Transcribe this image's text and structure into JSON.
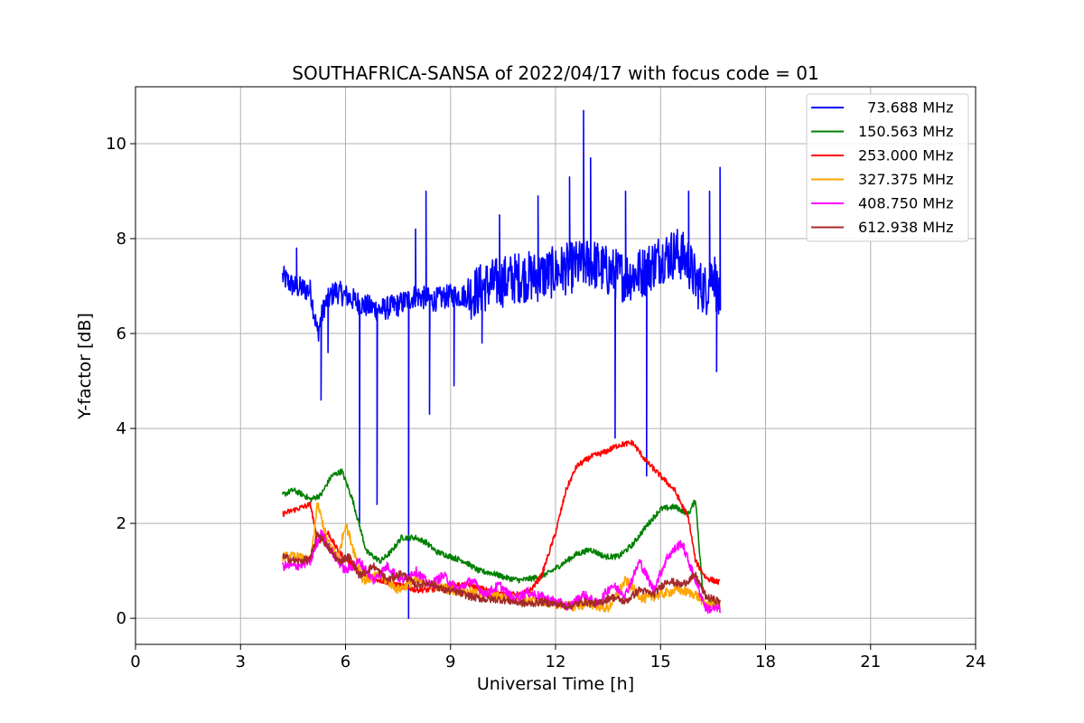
{
  "chart_data": {
    "type": "line",
    "title": "SOUTHAFRICA-SANSA of 2022/04/17 with focus code = 01",
    "xlabel": "Universal Time [h]",
    "ylabel": "Y-factor [dB]",
    "xlim": [
      0,
      24
    ],
    "ylim": [
      -0.55,
      11.2
    ],
    "xticks": [
      0,
      3,
      6,
      9,
      12,
      15,
      18,
      21,
      24
    ],
    "yticks": [
      0,
      2,
      4,
      6,
      8,
      10
    ],
    "grid": true,
    "legend_position": "top-right",
    "series": [
      {
        "name": "  73.688 MHz",
        "color": "#0000ff",
        "x": [
          4.2,
          4.5,
          5.0,
          5.2,
          5.4,
          5.7,
          6.0,
          6.5,
          7.0,
          7.5,
          8.0,
          8.5,
          9.0,
          9.5,
          10.0,
          10.5,
          11.0,
          11.5,
          12.0,
          12.5,
          13.0,
          13.5,
          14.0,
          14.5,
          15.0,
          15.5,
          15.8,
          16.0,
          16.3,
          16.5,
          16.7
        ],
        "y": [
          7.2,
          7.0,
          6.9,
          6.0,
          6.6,
          6.9,
          6.8,
          6.6,
          6.5,
          6.6,
          6.8,
          6.7,
          6.8,
          6.8,
          7.0,
          7.1,
          7.2,
          7.2,
          7.3,
          7.4,
          7.5,
          7.3,
          7.2,
          7.3,
          7.6,
          7.7,
          7.5,
          7.1,
          6.9,
          7.4,
          6.5
        ],
        "spikes": [
          [
            4.6,
            7.8
          ],
          [
            5.3,
            4.6
          ],
          [
            5.5,
            5.6
          ],
          [
            6.4,
            2.0
          ],
          [
            6.9,
            2.4
          ],
          [
            7.8,
            0.0
          ],
          [
            8.0,
            8.2
          ],
          [
            8.3,
            9.0
          ],
          [
            8.4,
            4.3
          ],
          [
            9.1,
            4.9
          ],
          [
            9.9,
            5.8
          ],
          [
            10.4,
            8.5
          ],
          [
            11.5,
            8.9
          ],
          [
            12.4,
            9.3
          ],
          [
            12.8,
            10.7
          ],
          [
            13.0,
            9.7
          ],
          [
            13.7,
            3.8
          ],
          [
            14.0,
            9.0
          ],
          [
            14.6,
            3.0
          ],
          [
            15.8,
            9.0
          ],
          [
            16.4,
            9.0
          ],
          [
            16.6,
            5.2
          ],
          [
            16.7,
            9.5
          ]
        ]
      },
      {
        "name": "150.563 MHz",
        "color": "#008000",
        "x": [
          4.2,
          4.5,
          4.8,
          5.0,
          5.3,
          5.6,
          5.9,
          6.2,
          6.6,
          7.0,
          7.3,
          7.6,
          8.0,
          8.3,
          8.6,
          9.0,
          9.4,
          9.8,
          10.2,
          10.6,
          11.0,
          11.4,
          11.8,
          12.2,
          12.6,
          13.0,
          13.4,
          13.8,
          14.2,
          14.6,
          15.0,
          15.4,
          15.8,
          16.0,
          16.2,
          16.4,
          16.7
        ],
        "y": [
          2.6,
          2.7,
          2.6,
          2.5,
          2.6,
          3.0,
          3.1,
          2.5,
          1.4,
          1.2,
          1.4,
          1.7,
          1.7,
          1.6,
          1.4,
          1.3,
          1.2,
          1.0,
          0.95,
          0.85,
          0.8,
          0.85,
          0.95,
          1.15,
          1.35,
          1.45,
          1.3,
          1.3,
          1.55,
          1.95,
          2.3,
          2.35,
          2.2,
          2.5,
          0.6,
          0.4,
          0.2
        ]
      },
      {
        "name": "253.000 MHz",
        "color": "#ff0000",
        "x": [
          4.2,
          4.6,
          5.0,
          5.2,
          5.5,
          5.8,
          6.1,
          6.5,
          7.0,
          7.5,
          8.0,
          8.5,
          9.0,
          9.5,
          10.0,
          10.5,
          11.0,
          11.3,
          11.6,
          12.0,
          12.3,
          12.6,
          13.0,
          13.4,
          13.8,
          14.2,
          14.6,
          15.0,
          15.4,
          15.8,
          16.0,
          16.3,
          16.7
        ],
        "y": [
          2.2,
          2.3,
          2.4,
          1.6,
          1.8,
          1.4,
          1.2,
          0.9,
          0.8,
          0.7,
          0.6,
          0.6,
          0.7,
          0.7,
          0.6,
          0.5,
          0.5,
          0.6,
          0.9,
          1.8,
          2.7,
          3.2,
          3.4,
          3.5,
          3.65,
          3.7,
          3.3,
          3.0,
          2.7,
          2.1,
          1.2,
          0.85,
          0.75
        ]
      },
      {
        "name": "327.375 MHz",
        "color": "#ffa500",
        "x": [
          4.2,
          4.6,
          5.0,
          5.2,
          5.5,
          5.8,
          6.0,
          6.5,
          7.0,
          7.5,
          8.0,
          8.5,
          9.0,
          9.5,
          10.0,
          10.5,
          11.0,
          11.5,
          12.0,
          12.5,
          13.0,
          13.5,
          14.0,
          14.5,
          15.0,
          15.5,
          16.0,
          16.3,
          16.7
        ],
        "y": [
          1.3,
          1.3,
          1.2,
          2.4,
          1.6,
          1.3,
          2.0,
          0.8,
          0.9,
          0.6,
          0.8,
          0.7,
          0.6,
          0.55,
          0.5,
          0.45,
          0.4,
          0.35,
          0.3,
          0.25,
          0.3,
          0.2,
          0.8,
          0.4,
          0.5,
          0.6,
          0.5,
          0.3,
          0.3
        ]
      },
      {
        "name": "408.750 MHz",
        "color": "#ff00ff",
        "x": [
          4.2,
          4.6,
          5.0,
          5.3,
          5.6,
          6.0,
          6.4,
          6.8,
          7.2,
          7.6,
          8.0,
          8.4,
          8.8,
          9.2,
          9.6,
          10.0,
          10.4,
          10.8,
          11.2,
          11.6,
          12.0,
          12.4,
          12.8,
          13.2,
          13.6,
          14.0,
          14.4,
          14.8,
          15.2,
          15.6,
          16.0,
          16.3,
          16.7
        ],
        "y": [
          1.1,
          1.1,
          1.2,
          1.8,
          1.4,
          1.0,
          1.2,
          0.8,
          1.1,
          0.8,
          1.0,
          0.7,
          0.9,
          0.6,
          0.8,
          0.5,
          0.7,
          0.4,
          0.55,
          0.45,
          0.35,
          0.25,
          0.5,
          0.3,
          0.7,
          0.5,
          1.2,
          0.6,
          1.3,
          1.6,
          0.8,
          0.2,
          0.2
        ]
      },
      {
        "name": "612.938 MHz",
        "color": "#a52a2a",
        "x": [
          4.2,
          4.6,
          5.0,
          5.2,
          5.5,
          5.8,
          6.1,
          6.4,
          6.8,
          7.2,
          7.6,
          8.0,
          8.4,
          8.8,
          9.2,
          9.6,
          10.0,
          10.4,
          10.8,
          11.2,
          11.6,
          12.0,
          12.4,
          12.8,
          13.2,
          13.6,
          14.0,
          14.4,
          14.8,
          15.2,
          15.6,
          16.0,
          16.3,
          16.7
        ],
        "y": [
          1.3,
          1.2,
          1.25,
          1.8,
          1.5,
          1.2,
          1.3,
          0.9,
          1.1,
          0.8,
          0.95,
          0.7,
          0.75,
          0.6,
          0.55,
          0.45,
          0.4,
          0.4,
          0.35,
          0.3,
          0.35,
          0.3,
          0.25,
          0.35,
          0.3,
          0.45,
          0.35,
          0.6,
          0.5,
          0.8,
          0.7,
          0.9,
          0.45,
          0.35
        ]
      }
    ]
  }
}
